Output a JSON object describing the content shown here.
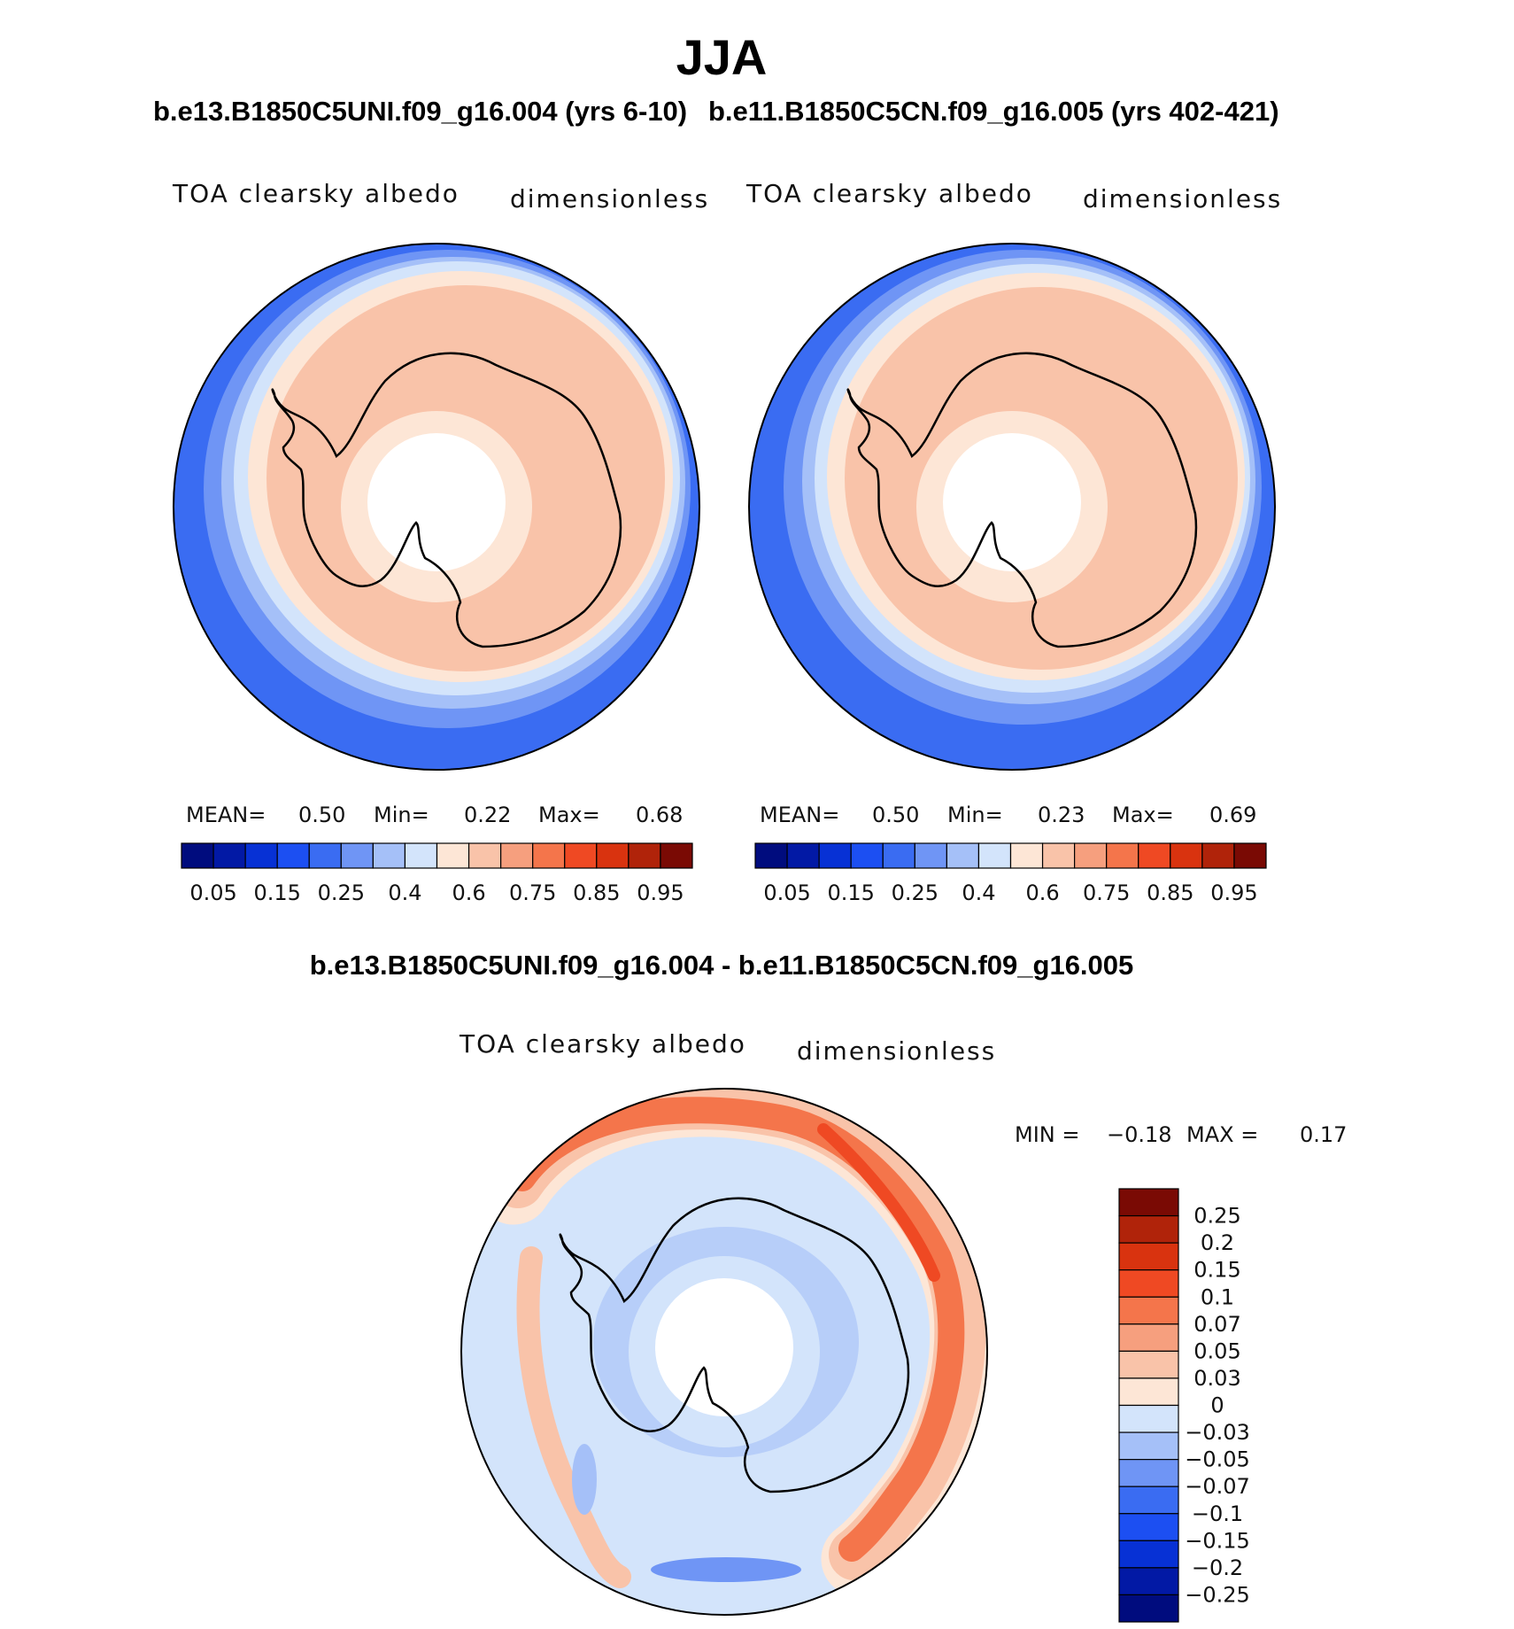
{
  "page_title": "JJA",
  "panels": [
    {
      "title": "b.e13.B1850C5UNI.f09_g16.004 (yrs 6-10)",
      "variable": "TOA clearsky albedo",
      "units": "dimensionless",
      "stats": {
        "mean_label": "MEAN=",
        "mean": "0.50",
        "min_label": "Min=",
        "min": "0.22",
        "max_label": "Max=",
        "max": "0.68"
      }
    },
    {
      "title": "b.e11.B1850C5CN.f09_g16.005 (yrs 402-421)",
      "variable": "TOA clearsky albedo",
      "units": "dimensionless",
      "stats": {
        "mean_label": "MEAN=",
        "mean": "0.50",
        "min_label": "Min=",
        "min": "0.23",
        "max_label": "Max=",
        "max": "0.69"
      }
    }
  ],
  "diff_panel": {
    "title": "b.e13.B1850C5UNI.f09_g16.004 - b.e11.B1850C5CN.f09_g16.005",
    "variable": "TOA clearsky albedo",
    "units": "dimensionless",
    "stats": {
      "min_label": "MIN =",
      "min": "−0.18",
      "max_label": "MAX =",
      "max": "0.17"
    }
  },
  "chart_data": [
    {
      "type": "heatmap",
      "projection": "south-polar-stereographic",
      "title": "b.e13.B1850C5UNI.f09_g16.004 (yrs 6-10)",
      "field": "TOA clearsky albedo",
      "units": "dimensionless",
      "mean": 0.5,
      "min": 0.22,
      "max": 0.68,
      "colorbar_levels": [
        "0.05",
        "0.15",
        "0.25",
        "0.4",
        "0.6",
        "0.75",
        "0.85",
        "0.95"
      ],
      "colorbar_colors": [
        "#000c7e",
        "#0219a5",
        "#0731d5",
        "#1c4ff2",
        "#3a6cf2",
        "#6f95f5",
        "#a5c0f8",
        "#d3e4fb",
        "#fde6d6",
        "#f9c3a9",
        "#f69f7e",
        "#f4754b",
        "#ef4923",
        "#d9330f",
        "#b0230a",
        "#7a0a04"
      ]
    },
    {
      "type": "heatmap",
      "projection": "south-polar-stereographic",
      "title": "b.e11.B1850C5CN.f09_g16.005 (yrs 402-421)",
      "field": "TOA clearsky albedo",
      "units": "dimensionless",
      "mean": 0.5,
      "min": 0.23,
      "max": 0.69,
      "colorbar_levels": [
        "0.05",
        "0.15",
        "0.25",
        "0.4",
        "0.6",
        "0.75",
        "0.85",
        "0.95"
      ],
      "colorbar_colors": [
        "#000c7e",
        "#0219a5",
        "#0731d5",
        "#1c4ff2",
        "#3a6cf2",
        "#6f95f5",
        "#a5c0f8",
        "#d3e4fb",
        "#fde6d6",
        "#f9c3a9",
        "#f69f7e",
        "#f4754b",
        "#ef4923",
        "#d9330f",
        "#b0230a",
        "#7a0a04"
      ]
    },
    {
      "type": "heatmap",
      "projection": "south-polar-stereographic",
      "title": "b.e13.B1850C5UNI.f09_g16.004 - b.e11.B1850C5CN.f09_g16.005",
      "field": "TOA clearsky albedo",
      "units": "dimensionless",
      "min": -0.18,
      "max": 0.17,
      "colorbar_levels": [
        "0.25",
        "0.2",
        "0.15",
        "0.1",
        "0.07",
        "0.05",
        "0.03",
        "0",
        "−0.03",
        "−0.05",
        "−0.07",
        "−0.1",
        "−0.15",
        "−0.2",
        "−0.25"
      ],
      "colorbar_colors": [
        "#7a0a04",
        "#b0230a",
        "#d9330f",
        "#ef4923",
        "#f4754b",
        "#f69f7e",
        "#f9c3a9",
        "#fde6d6",
        "#d3e4fb",
        "#a5c0f8",
        "#6f95f5",
        "#3a6cf2",
        "#1c4ff2",
        "#0731d5",
        "#0219a5",
        "#000c7e"
      ]
    }
  ]
}
